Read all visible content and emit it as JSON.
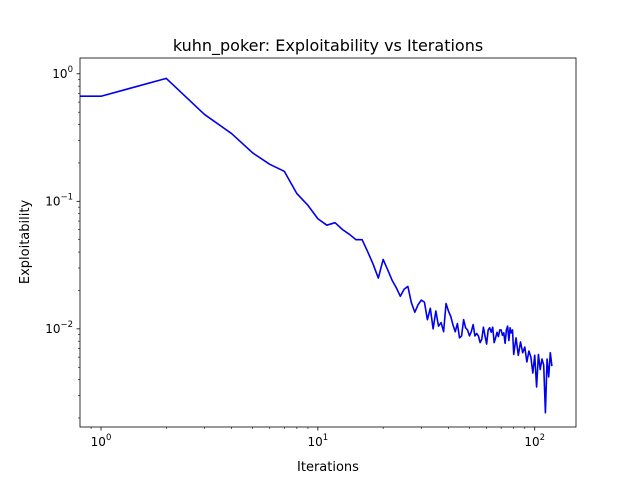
{
  "chart_data": {
    "type": "line",
    "title": "kuhn_poker:  Exploitability vs Iterations",
    "xlabel": "Iterations",
    "ylabel": "Exploitability",
    "xscale": "log",
    "yscale": "log",
    "xlim": [
      0.8,
      155
    ],
    "ylim": [
      0.0017,
      1.33
    ],
    "grid": false,
    "xticks": [
      {
        "value": 1,
        "base": "10",
        "exp": "0"
      },
      {
        "value": 10,
        "base": "10",
        "exp": "1"
      },
      {
        "value": 100,
        "base": "10",
        "exp": "2"
      }
    ],
    "yticks": [
      {
        "value": 1,
        "base": "10",
        "exp": "0"
      },
      {
        "value": 0.1,
        "base": "10",
        "exp": "−1"
      },
      {
        "value": 0.01,
        "base": "10",
        "exp": "−2"
      }
    ],
    "series": [
      {
        "color": "#0000ee",
        "x": [
          0.5,
          1,
          2,
          3,
          4,
          5,
          6,
          7,
          8,
          9,
          10,
          11,
          12,
          13,
          14,
          15,
          16,
          17,
          18,
          19,
          20,
          21,
          22,
          23,
          24,
          25,
          26,
          27,
          28,
          29,
          30,
          31,
          32,
          33,
          34,
          35,
          36,
          37,
          38,
          39,
          40,
          41,
          42,
          43,
          44,
          45,
          46,
          47,
          48,
          49,
          50,
          51,
          52,
          53,
          54,
          55,
          56,
          57,
          58,
          59,
          60,
          61,
          62,
          63,
          64,
          65,
          66,
          67,
          68,
          69,
          70,
          71,
          72,
          73,
          74,
          75,
          76,
          77,
          78,
          79,
          80,
          82,
          84,
          86,
          88,
          90,
          92,
          94,
          96,
          98,
          100,
          102,
          104,
          106,
          108,
          110,
          112,
          114,
          116,
          118,
          120
        ],
        "y": [
          0.667,
          0.667,
          0.92,
          0.48,
          0.34,
          0.24,
          0.195,
          0.172,
          0.115,
          0.093,
          0.073,
          0.065,
          0.068,
          0.06,
          0.055,
          0.05,
          0.05,
          0.04,
          0.032,
          0.025,
          0.035,
          0.029,
          0.024,
          0.021,
          0.018,
          0.0205,
          0.0215,
          0.016,
          0.0135,
          0.0155,
          0.0168,
          0.0162,
          0.0118,
          0.0145,
          0.01,
          0.0138,
          0.0105,
          0.0112,
          0.0095,
          0.0158,
          0.0138,
          0.0125,
          0.0107,
          0.0095,
          0.011,
          0.0085,
          0.0088,
          0.0118,
          0.0102,
          0.0098,
          0.0088,
          0.0095,
          0.0108,
          0.0088,
          0.0092,
          0.0088,
          0.0078,
          0.0083,
          0.0103,
          0.0088,
          0.0076,
          0.0098,
          0.0102,
          0.0094,
          0.0103,
          0.0078,
          0.0085,
          0.0094,
          0.0087,
          0.0098,
          0.0098,
          0.0089,
          0.0093,
          0.0077,
          0.0098,
          0.0105,
          0.0081,
          0.0102,
          0.0093,
          0.0098,
          0.0063,
          0.0085,
          0.0062,
          0.0079,
          0.0065,
          0.0072,
          0.0055,
          0.0067,
          0.006,
          0.0045,
          0.0062,
          0.0035,
          0.0063,
          0.0048,
          0.0058,
          0.0052,
          0.0022,
          0.0058,
          0.0042,
          0.0065,
          0.0051
        ]
      }
    ]
  }
}
